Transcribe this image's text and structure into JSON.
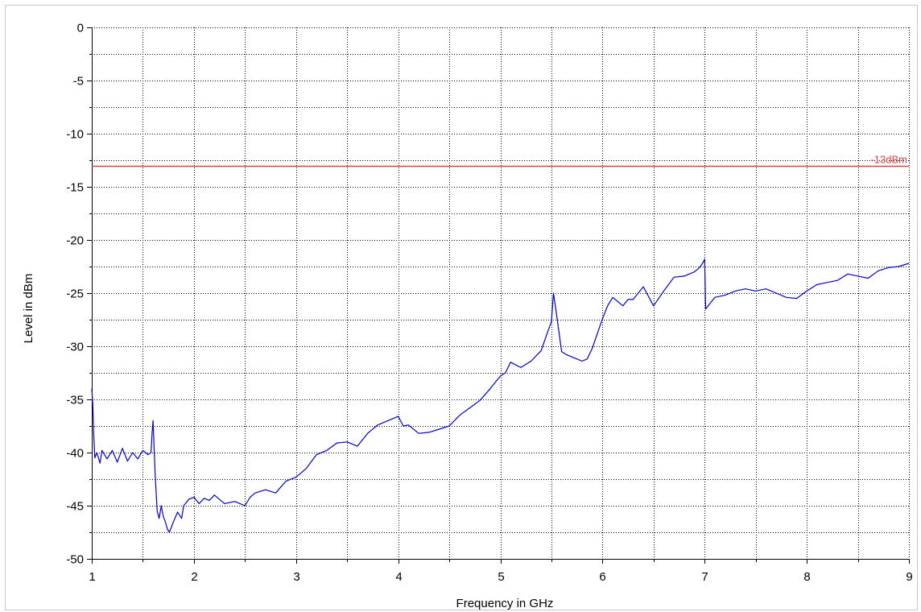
{
  "chart_data": {
    "type": "line",
    "title": "",
    "xlabel": "Frequency in GHz",
    "ylabel": "Level in dBm",
    "xlim": [
      1,
      9
    ],
    "ylim": [
      -50,
      0
    ],
    "x_ticks": [
      1,
      2,
      3,
      4,
      5,
      6,
      7,
      8,
      9
    ],
    "y_ticks": [
      0,
      -5,
      -10,
      -15,
      -20,
      -25,
      -30,
      -35,
      -40,
      -45,
      -50
    ],
    "grid": true,
    "limit_line": {
      "value": -13,
      "label": "-13dBm",
      "color": "#e04040"
    },
    "series": [
      {
        "color": "#0000cc",
        "x": [
          1.0,
          1.01,
          1.02,
          1.03,
          1.05,
          1.08,
          1.1,
          1.15,
          1.2,
          1.25,
          1.3,
          1.35,
          1.4,
          1.45,
          1.5,
          1.55,
          1.58,
          1.59,
          1.6,
          1.62,
          1.64,
          1.66,
          1.68,
          1.7,
          1.72,
          1.74,
          1.76,
          1.8,
          1.84,
          1.88,
          1.9,
          1.95,
          2.0,
          2.05,
          2.1,
          2.15,
          2.2,
          2.3,
          2.4,
          2.5,
          2.55,
          2.6,
          2.7,
          2.8,
          2.9,
          3.0,
          3.1,
          3.2,
          3.3,
          3.4,
          3.5,
          3.6,
          3.7,
          3.8,
          3.9,
          4.0,
          4.05,
          4.1,
          4.2,
          4.3,
          4.4,
          4.5,
          4.6,
          4.7,
          4.8,
          4.9,
          5.0,
          5.05,
          5.1,
          5.2,
          5.3,
          5.4,
          5.45,
          5.5,
          5.52,
          5.55,
          5.6,
          5.65,
          5.7,
          5.75,
          5.8,
          5.85,
          5.9,
          5.95,
          6.0,
          6.05,
          6.1,
          6.2,
          6.25,
          6.3,
          6.4,
          6.5,
          6.6,
          6.7,
          6.8,
          6.9,
          6.95,
          6.98,
          7.0,
          7.01,
          7.05,
          7.1,
          7.2,
          7.3,
          7.4,
          7.5,
          7.6,
          7.7,
          7.8,
          7.9,
          8.0,
          8.1,
          8.2,
          8.3,
          8.4,
          8.5,
          8.6,
          8.7,
          8.8,
          8.9,
          9.0
        ],
        "y": [
          -34,
          -35.5,
          -38.5,
          -40.5,
          -40,
          -41,
          -39.8,
          -40.6,
          -39.8,
          -40.9,
          -39.6,
          -40.8,
          -40,
          -40.6,
          -39.8,
          -40.2,
          -40,
          -38.2,
          -37,
          -42,
          -45.5,
          -46.2,
          -45,
          -46,
          -46.5,
          -47.2,
          -47.5,
          -46.5,
          -45.6,
          -46.2,
          -45,
          -44.4,
          -44.2,
          -44.8,
          -44.3,
          -44.5,
          -44,
          -44.8,
          -44.6,
          -45,
          -44.2,
          -43.8,
          -43.5,
          -43.8,
          -42.7,
          -42.3,
          -41.5,
          -40.2,
          -39.8,
          -39.1,
          -39,
          -39.4,
          -38.2,
          -37.4,
          -37,
          -36.6,
          -37.5,
          -37.4,
          -38.2,
          -38.1,
          -37.8,
          -37.5,
          -36.5,
          -35.8,
          -35.1,
          -34,
          -32.8,
          -32.5,
          -31.5,
          -32,
          -31.4,
          -30.4,
          -29,
          -27.7,
          -25,
          -27,
          -30.5,
          -30.8,
          -31,
          -31.2,
          -31.4,
          -31.2,
          -30.2,
          -28.8,
          -27.4,
          -26.2,
          -25.4,
          -26.2,
          -25.6,
          -25.6,
          -24.4,
          -26.2,
          -24.8,
          -23.5,
          -23.4,
          -23,
          -22.6,
          -22.2,
          -21.8,
          -26.5,
          -26,
          -25.4,
          -25.2,
          -24.8,
          -24.6,
          -24.8,
          -24.6,
          -25,
          -25.4,
          -25.5,
          -24.8,
          -24.2,
          -24,
          -23.8,
          -23.2,
          -23.4,
          -23.6,
          -22.9,
          -22.6,
          -22.5,
          -22.2
        ]
      }
    ]
  }
}
